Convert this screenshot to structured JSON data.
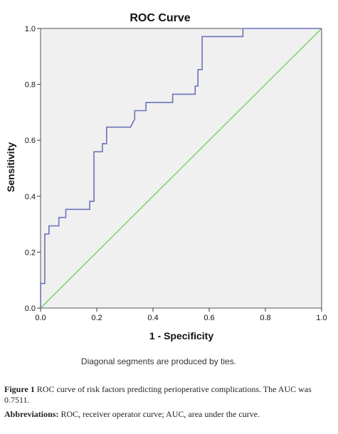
{
  "chart_data": {
    "type": "line",
    "title": "ROC Curve",
    "xlabel": "1 - Specificity",
    "ylabel": "Sensitivity",
    "xlim": [
      0,
      1
    ],
    "ylim": [
      0,
      1
    ],
    "x_ticks": [
      "0.0",
      "0.2",
      "0.4",
      "0.6",
      "0.8",
      "1.0"
    ],
    "y_ticks": [
      "0.0",
      "0.2",
      "0.4",
      "0.6",
      "0.8",
      "1.0"
    ],
    "grid": false,
    "series": [
      {
        "color": "#6b73b7",
        "points": [
          [
            0,
            0
          ],
          [
            0,
            0.088
          ],
          [
            0.015,
            0.088
          ],
          [
            0.015,
            0.265
          ],
          [
            0.03,
            0.265
          ],
          [
            0.03,
            0.294
          ],
          [
            0.065,
            0.294
          ],
          [
            0.065,
            0.324
          ],
          [
            0.09,
            0.324
          ],
          [
            0.09,
            0.353
          ],
          [
            0.175,
            0.353
          ],
          [
            0.175,
            0.382
          ],
          [
            0.19,
            0.382
          ],
          [
            0.19,
            0.559
          ],
          [
            0.22,
            0.559
          ],
          [
            0.22,
            0.588
          ],
          [
            0.235,
            0.588
          ],
          [
            0.235,
            0.647
          ],
          [
            0.32,
            0.647
          ],
          [
            0.335,
            0.676
          ],
          [
            0.335,
            0.706
          ],
          [
            0.375,
            0.706
          ],
          [
            0.375,
            0.735
          ],
          [
            0.47,
            0.735
          ],
          [
            0.47,
            0.765
          ],
          [
            0.55,
            0.765
          ],
          [
            0.55,
            0.794
          ],
          [
            0.56,
            0.794
          ],
          [
            0.56,
            0.853
          ],
          [
            0.575,
            0.853
          ],
          [
            0.575,
            0.971
          ],
          [
            0.72,
            0.971
          ],
          [
            0.72,
            1.0
          ],
          [
            1.0,
            1.0
          ]
        ]
      },
      {
        "color": "#6ccf57",
        "points": [
          [
            0,
            0
          ],
          [
            1,
            1
          ]
        ]
      }
    ],
    "colors": {
      "plot_bg": "#f0f0f0",
      "axis": "#333333",
      "curve": "#6b73b7",
      "diagonal": "#6ccf57"
    },
    "note": "Diagonal segments are produced by ties."
  },
  "caption": {
    "label": "Figure 1",
    "text": "ROC curve of risk factors predicting perioperative complications. The AUC was 0.7511.",
    "abbrev_label": "Abbreviations:",
    "abbrev_text": "ROC, receiver operator curve; AUC, area under the curve."
  }
}
